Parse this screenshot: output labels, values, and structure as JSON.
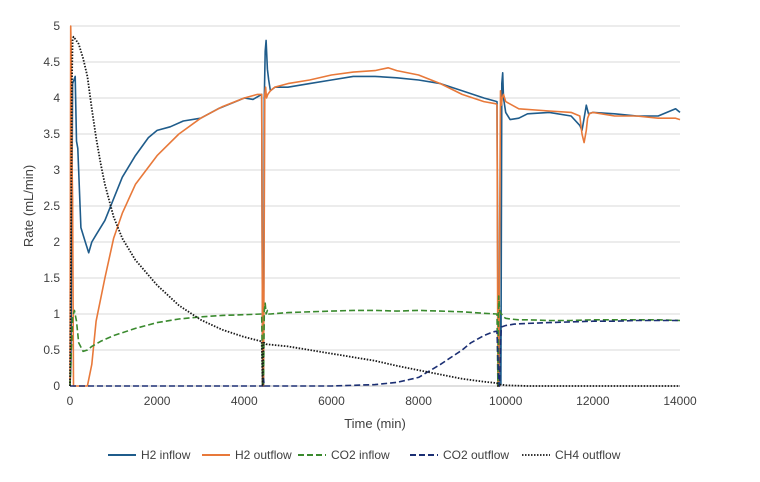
{
  "chart_data": {
    "type": "line",
    "title": "",
    "xlabel": "Time (min)",
    "ylabel": "Rate (mL/min)",
    "xlim": [
      0,
      14000
    ],
    "ylim": [
      0,
      5
    ],
    "xticks": [
      0,
      2000,
      4000,
      6000,
      8000,
      10000,
      12000,
      14000
    ],
    "yticks": [
      0,
      0.5,
      1,
      1.5,
      2,
      2.5,
      3,
      3.5,
      4,
      4.5,
      5
    ],
    "xtick_labels": [
      "0",
      "2000",
      "4000",
      "6000",
      "8000",
      "10000",
      "12000",
      "14000"
    ],
    "ytick_labels": [
      "0",
      "0.5",
      "1",
      "1.5",
      "2",
      "2.5",
      "3",
      "3.5",
      "4",
      "4.5",
      "5"
    ],
    "grid": "horizontal",
    "legend_position": "bottom",
    "series": [
      {
        "name": "H2 inflow",
        "color": "#1f5c8b",
        "dash": "solid",
        "x": [
          0,
          20,
          60,
          120,
          150,
          180,
          250,
          350,
          430,
          500,
          600,
          800,
          1000,
          1200,
          1500,
          1800,
          2000,
          2300,
          2600,
          3000,
          3400,
          3800,
          4000,
          4200,
          4400,
          4420,
          4440,
          4460,
          4480,
          4500,
          4530,
          4560,
          4600,
          4700,
          5000,
          5500,
          6000,
          6500,
          7000,
          7500,
          8000,
          8500,
          9000,
          9500,
          9800,
          9830,
          9850,
          9870,
          9890,
          9910,
          9930,
          9950,
          10000,
          10100,
          10300,
          10500,
          11000,
          11500,
          11700,
          11750,
          11800,
          11850,
          11900,
          12000,
          12500,
          13000,
          13500,
          13900,
          14000
        ],
        "y": [
          0,
          0.3,
          4.2,
          4.3,
          3.4,
          3.3,
          2.2,
          2.0,
          1.85,
          2.0,
          2.1,
          2.3,
          2.6,
          2.9,
          3.2,
          3.45,
          3.55,
          3.6,
          3.68,
          3.72,
          3.85,
          3.95,
          4.0,
          3.98,
          4.05,
          0.05,
          0.0,
          4.0,
          4.65,
          4.8,
          4.4,
          4.25,
          4.1,
          4.15,
          4.15,
          4.2,
          4.25,
          4.3,
          4.3,
          4.28,
          4.25,
          4.2,
          4.1,
          4.0,
          3.95,
          0.05,
          0.0,
          1.0,
          0.02,
          4.2,
          4.35,
          4.0,
          3.8,
          3.7,
          3.72,
          3.78,
          3.8,
          3.75,
          3.62,
          3.55,
          3.72,
          3.9,
          3.78,
          3.8,
          3.78,
          3.75,
          3.75,
          3.85,
          3.8
        ]
      },
      {
        "name": "H2 outflow",
        "color": "#e8793a",
        "dash": "solid",
        "x": [
          0,
          15,
          30,
          45,
          60,
          80,
          120,
          200,
          300,
          350,
          400,
          500,
          600,
          800,
          1000,
          1200,
          1500,
          2000,
          2500,
          3000,
          3500,
          4000,
          4300,
          4400,
          4420,
          4440,
          4470,
          4490,
          4510,
          4540,
          4600,
          4700,
          5000,
          5500,
          6000,
          6500,
          7000,
          7300,
          7500,
          8000,
          8500,
          9000,
          9500,
          9780,
          9800,
          9820,
          9840,
          9860,
          9880,
          9900,
          9920,
          9950,
          10000,
          10300,
          11000,
          11500,
          11700,
          11750,
          11800,
          11850,
          11880,
          11920,
          12000,
          12500,
          13000,
          13500,
          13900,
          14000
        ],
        "y": [
          0,
          5.0,
          4.6,
          3.1,
          2.6,
          0.0,
          0.0,
          0.0,
          0.0,
          0.0,
          0.0,
          0.3,
          0.9,
          1.5,
          2.05,
          2.4,
          2.8,
          3.2,
          3.5,
          3.72,
          3.88,
          4.0,
          4.05,
          4.05,
          0.0,
          0.0,
          4.05,
          4.15,
          4.0,
          4.05,
          4.1,
          4.15,
          4.2,
          4.25,
          4.32,
          4.36,
          4.38,
          4.42,
          4.38,
          4.32,
          4.2,
          4.05,
          3.95,
          3.92,
          3.9,
          0.0,
          0.0,
          2.0,
          4.1,
          3.9,
          4.0,
          4.05,
          3.95,
          3.85,
          3.82,
          3.8,
          3.75,
          3.5,
          3.38,
          3.55,
          3.72,
          3.78,
          3.8,
          3.75,
          3.75,
          3.72,
          3.72,
          3.7
        ]
      },
      {
        "name": "CO2 inflow",
        "color": "#3a8a2e",
        "dash": "6,3",
        "x": [
          0,
          30,
          60,
          100,
          150,
          200,
          300,
          400,
          500,
          700,
          1000,
          1500,
          2000,
          2500,
          3000,
          3500,
          4000,
          4400,
          4420,
          4440,
          4460,
          4480,
          4500,
          4530,
          4560,
          4600,
          5000,
          5500,
          6000,
          6500,
          7000,
          7500,
          8000,
          8500,
          9000,
          9500,
          9800,
          9820,
          9840,
          9860,
          9880,
          9900,
          9950,
          10000,
          10100,
          10300,
          10500,
          11000,
          11500,
          12000,
          12500,
          13000,
          13500,
          14000
        ],
        "y": [
          0,
          0.5,
          0.95,
          1.05,
          0.9,
          0.6,
          0.48,
          0.5,
          0.55,
          0.62,
          0.7,
          0.8,
          0.88,
          0.93,
          0.96,
          0.98,
          0.99,
          1.0,
          0.0,
          0.0,
          1.05,
          1.15,
          1.0,
          1.05,
          1.0,
          1.0,
          1.02,
          1.03,
          1.04,
          1.05,
          1.05,
          1.04,
          1.05,
          1.04,
          1.03,
          1.01,
          1.0,
          0.0,
          1.25,
          1.05,
          1.02,
          1.0,
          0.96,
          0.94,
          0.93,
          0.92,
          0.92,
          0.91,
          0.91,
          0.92,
          0.92,
          0.92,
          0.92,
          0.91
        ]
      },
      {
        "name": "CO2 outflow",
        "color": "#1b2f73",
        "dash": "6,3",
        "x": [
          0,
          500,
          1000,
          2000,
          3000,
          4000,
          4400,
          4420,
          4440,
          4460,
          4480,
          4500,
          5000,
          6000,
          7000,
          7500,
          8000,
          8500,
          8800,
          9000,
          9200,
          9500,
          9700,
          9780,
          9800,
          9820,
          9840,
          9860,
          9880,
          9900,
          9950,
          10000,
          10200,
          10500,
          11000,
          11500,
          12000,
          12500,
          13000,
          13500,
          14000
        ],
        "y": [
          0,
          0,
          0,
          0,
          0,
          0,
          0,
          0.0,
          0.1,
          0.0,
          0.0,
          0,
          0,
          0,
          0.02,
          0.05,
          0.12,
          0.3,
          0.42,
          0.5,
          0.6,
          0.7,
          0.75,
          0.76,
          0.75,
          0.4,
          0.05,
          0.0,
          0.6,
          0.82,
          0.83,
          0.84,
          0.86,
          0.87,
          0.88,
          0.89,
          0.9,
          0.9,
          0.91,
          0.91,
          0.91
        ]
      },
      {
        "name": "CH4 outflow",
        "color": "#1a1a1a",
        "dash": "1.5,1.5",
        "x": [
          0,
          20,
          40,
          60,
          80,
          120,
          200,
          300,
          400,
          500,
          600,
          700,
          800,
          1000,
          1200,
          1500,
          2000,
          2500,
          3000,
          3500,
          4000,
          4400,
          4420,
          4440,
          4460,
          4500,
          5000,
          5500,
          6000,
          6500,
          7000,
          7500,
          8000,
          8500,
          9000,
          9500,
          9800,
          9820,
          9850,
          9880,
          9900,
          10000,
          10500,
          11000,
          12000,
          13000,
          14000
        ],
        "y": [
          0,
          1.5,
          4.0,
          4.8,
          4.85,
          4.82,
          4.75,
          4.55,
          4.3,
          3.85,
          3.45,
          3.1,
          2.8,
          2.35,
          2.05,
          1.75,
          1.4,
          1.12,
          0.92,
          0.78,
          0.68,
          0.62,
          0.0,
          0.6,
          0.6,
          0.58,
          0.55,
          0.5,
          0.45,
          0.4,
          0.35,
          0.28,
          0.22,
          0.16,
          0.1,
          0.06,
          0.04,
          0.0,
          0.02,
          0.02,
          0.02,
          0.01,
          0.0,
          0.0,
          0.0,
          0.0,
          0.0
        ]
      }
    ]
  }
}
